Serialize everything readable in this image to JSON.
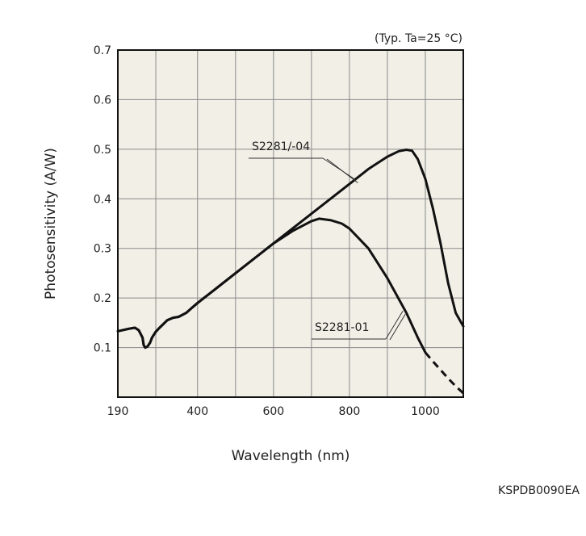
{
  "chart_data": {
    "type": "line",
    "title": "",
    "note": "(Typ. Ta=25 °C)",
    "xlabel": "Wavelength (nm)",
    "ylabel": "Photosensitivity (A/W)",
    "xlim": [
      190,
      1100
    ],
    "ylim": [
      0,
      0.7
    ],
    "x_ticks": [
      {
        "value": 190,
        "label": "190"
      },
      {
        "value": 400,
        "label": "400"
      },
      {
        "value": 600,
        "label": "600"
      },
      {
        "value": 800,
        "label": "800"
      },
      {
        "value": 1000,
        "label": "1000"
      }
    ],
    "x_grid": [
      290,
      400,
      500,
      600,
      700,
      800,
      900,
      1000
    ],
    "y_ticks": [
      0.1,
      0.2,
      0.3,
      0.4,
      0.5,
      0.6,
      0.7
    ],
    "y_tick_labels": [
      "0.1",
      "0.2",
      "0.3",
      "0.4",
      "0.5",
      "0.6",
      "0.7"
    ],
    "grid": true,
    "plot_background": "#f1efe6",
    "line_color": "#111111",
    "series": [
      {
        "name": "S2281/-04",
        "x": [
          190,
          220,
          235,
          245,
          255,
          258,
          262,
          268,
          275,
          280,
          290,
          300,
          320,
          335,
          350,
          370,
          385,
          400,
          450,
          500,
          550,
          600,
          650,
          700,
          750,
          800,
          850,
          900,
          930,
          950,
          965,
          980,
          1000,
          1020,
          1040,
          1060,
          1080,
          1100
        ],
        "y": [
          0.133,
          0.138,
          0.14,
          0.135,
          0.12,
          0.105,
          0.1,
          0.102,
          0.11,
          0.12,
          0.132,
          0.14,
          0.155,
          0.16,
          0.162,
          0.17,
          0.18,
          0.19,
          0.22,
          0.25,
          0.28,
          0.31,
          0.34,
          0.37,
          0.4,
          0.43,
          0.46,
          0.485,
          0.496,
          0.499,
          0.497,
          0.48,
          0.44,
          0.38,
          0.31,
          0.23,
          0.17,
          0.143
        ]
      },
      {
        "name": "S2281-01",
        "x": [
          190,
          220,
          235,
          245,
          255,
          258,
          262,
          268,
          275,
          280,
          290,
          300,
          320,
          335,
          350,
          370,
          385,
          400,
          450,
          500,
          550,
          600,
          650,
          700,
          720,
          750,
          780,
          800,
          850,
          900,
          950,
          980,
          1000
        ],
        "y": [
          0.133,
          0.138,
          0.14,
          0.135,
          0.12,
          0.105,
          0.1,
          0.102,
          0.11,
          0.12,
          0.132,
          0.14,
          0.155,
          0.16,
          0.162,
          0.17,
          0.18,
          0.19,
          0.22,
          0.25,
          0.28,
          0.31,
          0.335,
          0.355,
          0.36,
          0.357,
          0.35,
          0.34,
          0.3,
          0.24,
          0.17,
          0.12,
          0.09
        ],
        "extension_dashed": {
          "x": [
            1000,
            1020,
            1040,
            1060,
            1080,
            1100
          ],
          "y": [
            0.09,
            0.072,
            0.055,
            0.038,
            0.022,
            0.008
          ]
        }
      }
    ],
    "annotations": [
      {
        "text": "S2281/-04",
        "series": "S2281/-04",
        "points_to_x": 820
      },
      {
        "text": "S2281-01",
        "series": "S2281-01",
        "points_to_x": 945
      }
    ]
  },
  "footer_code": "KSPDB0090EA"
}
